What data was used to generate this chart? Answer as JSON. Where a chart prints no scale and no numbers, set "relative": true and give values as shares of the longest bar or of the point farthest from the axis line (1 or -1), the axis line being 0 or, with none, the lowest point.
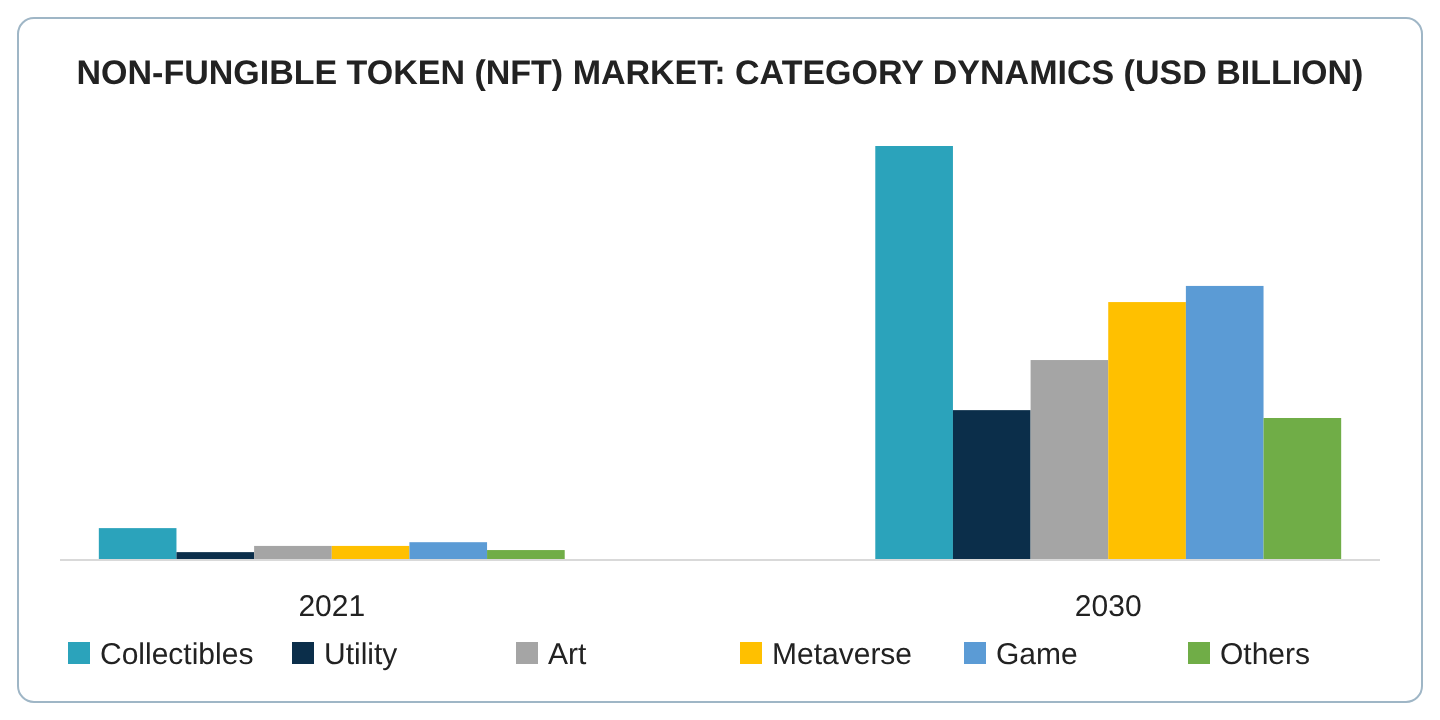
{
  "chart_data": {
    "type": "bar",
    "title": "NON-FUNGIBLE TOKEN (NFT) MARKET: CATEGORY DYNAMICS (USD BILLION)",
    "relative": true,
    "categories": [
      "2021",
      "2030"
    ],
    "legend": "bottom",
    "series": [
      {
        "name": "Collectibles",
        "color": "#2ba3bb",
        "values": [
          0.077,
          1
        ]
      },
      {
        "name": "Utility",
        "color": "#0b2e4a",
        "values": [
          0.019,
          0.362
        ]
      },
      {
        "name": "Art",
        "color": "#a5a5a5",
        "values": [
          0.034,
          0.483
        ]
      },
      {
        "name": "Metaverse",
        "color": "#ffc000",
        "values": [
          0.034,
          0.623
        ]
      },
      {
        "name": "Game",
        "color": "#5b9bd5",
        "values": [
          0.043,
          0.662
        ]
      },
      {
        "name": "Others",
        "color": "#70ad47",
        "values": [
          0.024,
          0.343
        ]
      }
    ]
  }
}
